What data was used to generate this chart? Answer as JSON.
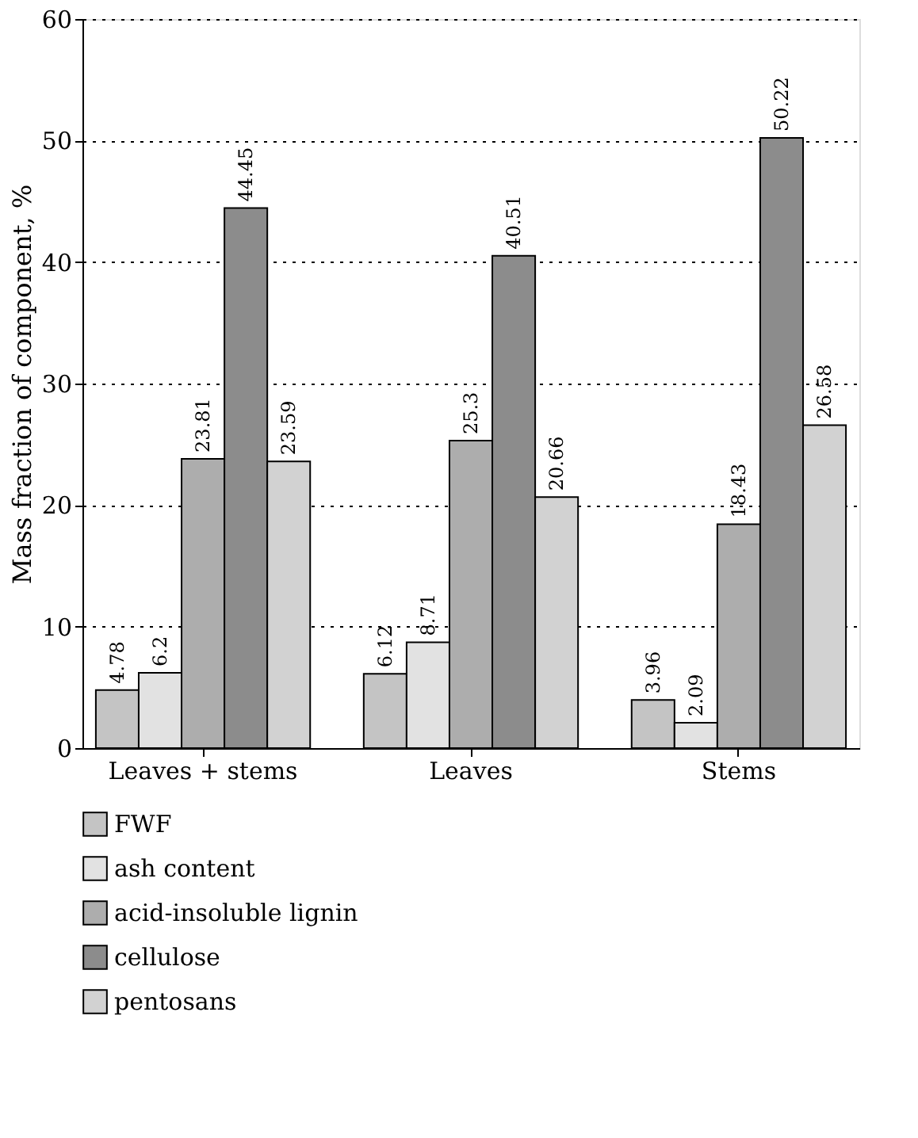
{
  "chart_data": {
    "type": "bar",
    "ylabel": "Mass fraction of  component, %",
    "categories": [
      "Leaves + stems",
      "Leaves",
      "Stems"
    ],
    "series": [
      {
        "name": "FWF",
        "color": "#c4c4c4",
        "values": [
          4.78,
          6.12,
          3.96
        ]
      },
      {
        "name": "ash content",
        "color": "#e2e2e2",
        "values": [
          6.2,
          8.71,
          2.09
        ]
      },
      {
        "name": "acid-insoluble lignin",
        "color": "#adadad",
        "values": [
          23.81,
          25.3,
          18.43
        ]
      },
      {
        "name": "cellulose",
        "color": "#8c8c8c",
        "values": [
          44.45,
          40.51,
          50.22
        ]
      },
      {
        "name": "pentosans",
        "color": "#d2d2d2",
        "values": [
          23.59,
          20.66,
          26.58
        ]
      }
    ],
    "ylim": [
      0,
      60
    ],
    "yticks": [
      0,
      10,
      20,
      30,
      40,
      50,
      60
    ],
    "grid": "y",
    "legend": "bottom",
    "data_labels": true
  }
}
